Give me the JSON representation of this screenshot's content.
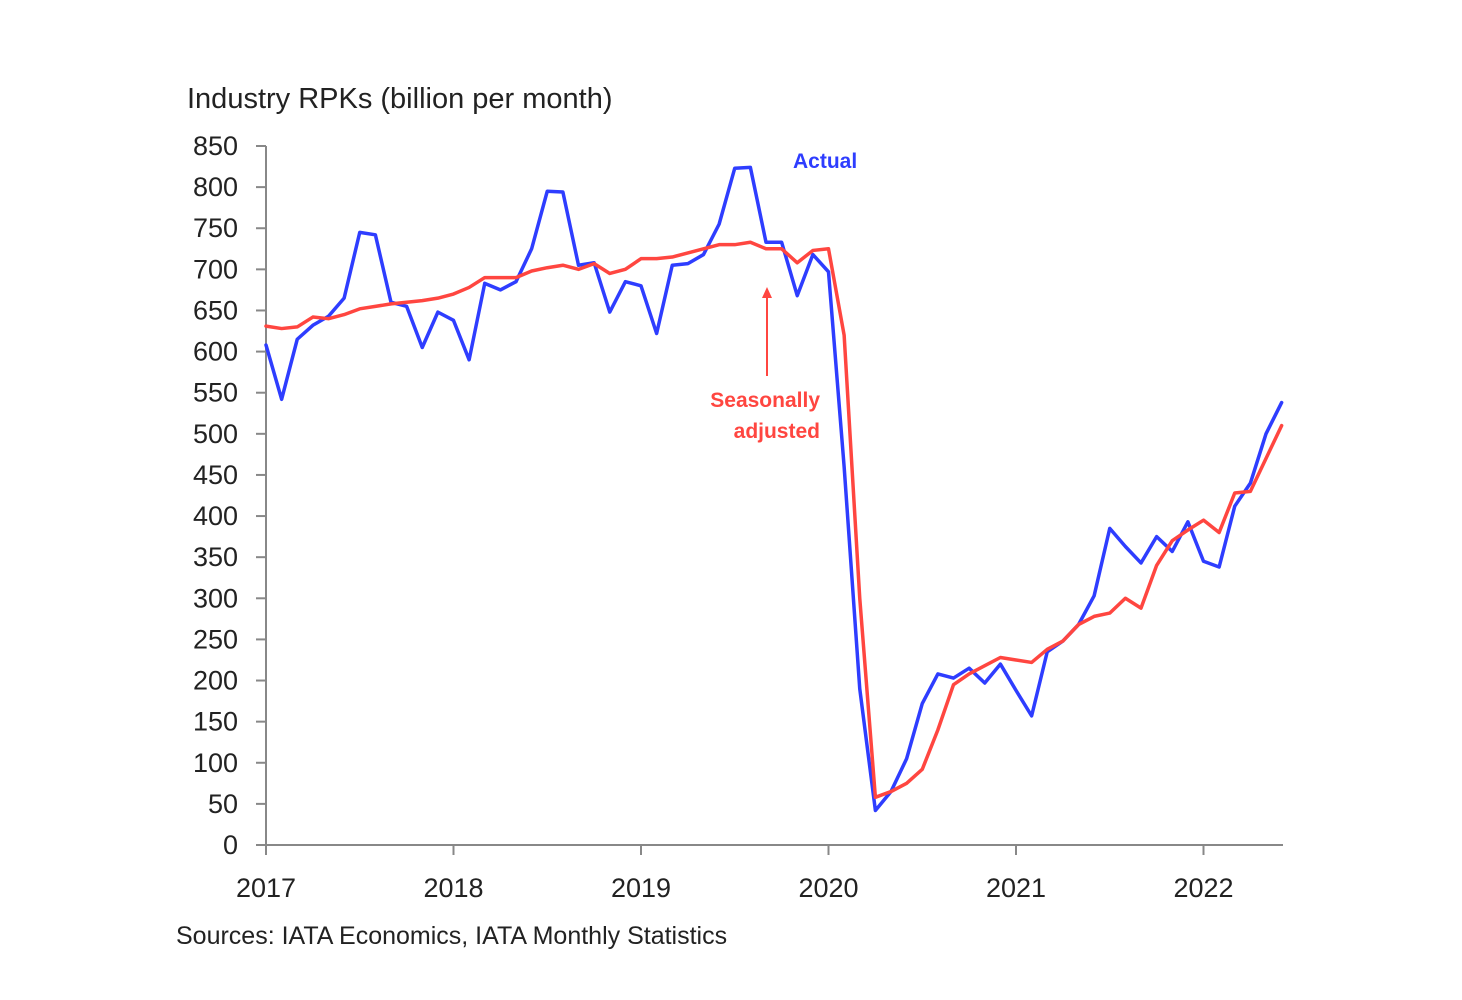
{
  "chart_data": {
    "type": "line",
    "title": "Industry RPKs (billion per month)",
    "source": "Sources: IATA Economics, IATA Monthly Statistics",
    "ylim": [
      0,
      850
    ],
    "yticks": [
      0,
      50,
      100,
      150,
      200,
      250,
      300,
      350,
      400,
      450,
      500,
      550,
      600,
      650,
      700,
      750,
      800,
      850
    ],
    "xticks": [
      "2017",
      "2018",
      "2019",
      "2020",
      "2021",
      "2022"
    ],
    "x_start": "2017-01",
    "x_end": "2022-06",
    "annotations": {
      "actual": "Actual",
      "seasonally_adjusted_line1": "Seasonally",
      "seasonally_adjusted_line2": "adjusted"
    },
    "series": [
      {
        "name": "Actual",
        "color": "#2e3dff",
        "x": [
          "2017-01",
          "2017-02",
          "2017-03",
          "2017-04",
          "2017-05",
          "2017-06",
          "2017-07",
          "2017-08",
          "2017-09",
          "2017-10",
          "2017-11",
          "2017-12",
          "2018-01",
          "2018-02",
          "2018-03",
          "2018-04",
          "2018-05",
          "2018-06",
          "2018-07",
          "2018-08",
          "2018-09",
          "2018-10",
          "2018-11",
          "2018-12",
          "2019-01",
          "2019-02",
          "2019-03",
          "2019-04",
          "2019-05",
          "2019-06",
          "2019-07",
          "2019-08",
          "2019-09",
          "2019-10",
          "2019-11",
          "2019-12",
          "2020-01",
          "2020-02",
          "2020-03",
          "2020-04",
          "2020-05",
          "2020-06",
          "2020-07",
          "2020-08",
          "2020-09",
          "2020-10",
          "2020-11",
          "2020-12",
          "2021-01",
          "2021-02",
          "2021-03",
          "2021-04",
          "2021-05",
          "2021-06",
          "2021-07",
          "2021-08",
          "2021-09",
          "2021-10",
          "2021-11",
          "2021-12",
          "2022-01",
          "2022-02",
          "2022-03",
          "2022-04",
          "2022-05",
          "2022-06"
        ],
        "values": [
          608,
          542,
          615,
          632,
          643,
          665,
          745,
          742,
          660,
          655,
          605,
          648,
          638,
          590,
          683,
          675,
          685,
          725,
          795,
          794,
          705,
          708,
          648,
          685,
          680,
          622,
          705,
          707,
          718,
          755,
          823,
          824,
          733,
          733,
          668,
          718,
          697,
          460,
          190,
          42,
          65,
          105,
          172,
          208,
          203,
          215,
          197,
          220,
          188,
          157,
          235,
          248,
          268,
          303,
          385,
          363,
          343,
          375,
          357,
          393,
          345,
          338,
          412,
          440,
          500,
          538
        ]
      },
      {
        "name": "Seasonally adjusted",
        "color": "#ff4640",
        "x": [
          "2017-01",
          "2017-02",
          "2017-03",
          "2017-04",
          "2017-05",
          "2017-06",
          "2017-07",
          "2017-08",
          "2017-09",
          "2017-10",
          "2017-11",
          "2017-12",
          "2018-01",
          "2018-02",
          "2018-03",
          "2018-04",
          "2018-05",
          "2018-06",
          "2018-07",
          "2018-08",
          "2018-09",
          "2018-10",
          "2018-11",
          "2018-12",
          "2019-01",
          "2019-02",
          "2019-03",
          "2019-04",
          "2019-05",
          "2019-06",
          "2019-07",
          "2019-08",
          "2019-09",
          "2019-10",
          "2019-11",
          "2019-12",
          "2020-01",
          "2020-02",
          "2020-03",
          "2020-04",
          "2020-05",
          "2020-06",
          "2020-07",
          "2020-08",
          "2020-09",
          "2020-10",
          "2020-11",
          "2020-12",
          "2021-01",
          "2021-02",
          "2021-03",
          "2021-04",
          "2021-05",
          "2021-06",
          "2021-07",
          "2021-08",
          "2021-09",
          "2021-10",
          "2021-11",
          "2021-12",
          "2022-01",
          "2022-02",
          "2022-03",
          "2022-04",
          "2022-05",
          "2022-06"
        ],
        "values": [
          631,
          628,
          630,
          642,
          640,
          645,
          652,
          655,
          658,
          660,
          662,
          665,
          670,
          678,
          690,
          690,
          690,
          698,
          702,
          705,
          700,
          707,
          695,
          700,
          713,
          713,
          715,
          720,
          725,
          730,
          730,
          733,
          725,
          725,
          708,
          723,
          725,
          620,
          300,
          58,
          65,
          75,
          92,
          140,
          195,
          208,
          218,
          228,
          225,
          222,
          238,
          248,
          268,
          278,
          282,
          300,
          288,
          340,
          370,
          383,
          395,
          380,
          428,
          430,
          470,
          510
        ]
      }
    ]
  }
}
